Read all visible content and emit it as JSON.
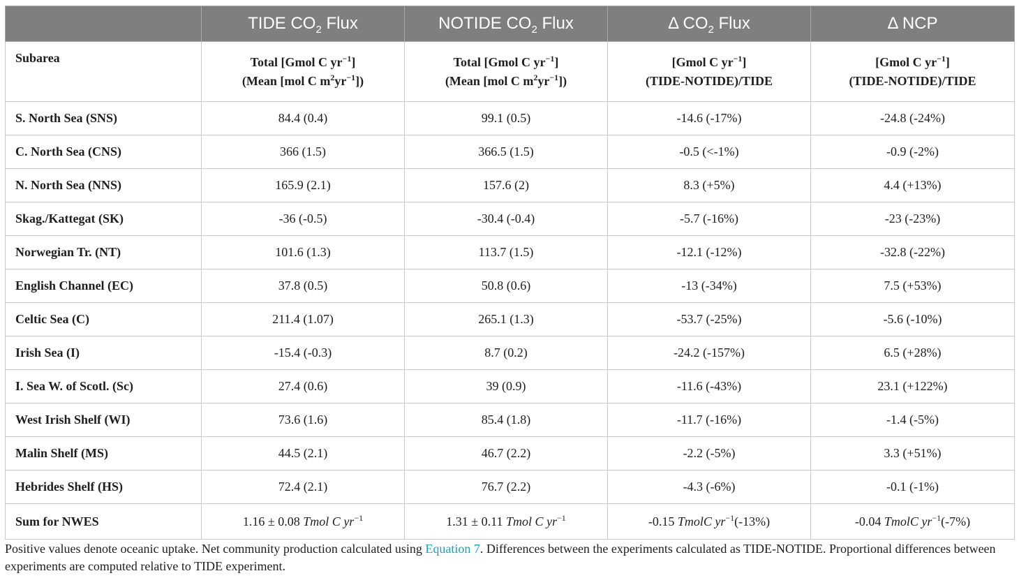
{
  "headers": {
    "h0": "",
    "h1_pre": "TIDE CO",
    "h1_sub": "2",
    "h1_post": " Flux",
    "h2_pre": "NOTIDE CO",
    "h2_sub": "2",
    "h2_post": " Flux",
    "h3_pre": "Δ CO",
    "h3_sub": "2",
    "h3_post": " Flux",
    "h4": "Δ NCP"
  },
  "units_row": {
    "subarea": "Subarea",
    "c1_l1_pre": "Total [Gmol C yr",
    "c1_l1_sup": "−1",
    "c1_l1_post": "]",
    "c1_l2_pre": "(Mean [mol C m",
    "c1_l2_sup1": "2",
    "c1_l2_mid": "yr",
    "c1_l2_sup2": "−1",
    "c1_l2_post": "])",
    "c2_l1_pre": "Total [Gmol C yr",
    "c2_l1_sup": "−1",
    "c2_l1_post": "]",
    "c2_l2_pre": "(Mean [mol C m",
    "c2_l2_sup1": "2",
    "c2_l2_mid": "yr",
    "c2_l2_sup2": "−1",
    "c2_l2_post": "])",
    "c3_l1_pre": "[Gmol C yr",
    "c3_l1_sup": "−1",
    "c3_l1_post": "]",
    "c3_l2": "(TIDE-NOTIDE)/TIDE",
    "c4_l1_pre": "[Gmol C yr",
    "c4_l1_sup": "−1",
    "c4_l1_post": "]",
    "c4_l2": "(TIDE-NOTIDE)/TIDE"
  },
  "rows": [
    {
      "subarea": "S. North Sea (SNS)",
      "tide": "84.4 (0.4)",
      "notide": "99.1 (0.5)",
      "dco2": "-14.6 (-17%)",
      "dncp": "-24.8 (-24%)"
    },
    {
      "subarea": "C. North Sea (CNS)",
      "tide": "366 (1.5)",
      "notide": "366.5 (1.5)",
      "dco2": "-0.5 (<-1%)",
      "dncp": "-0.9 (-2%)"
    },
    {
      "subarea": "N. North Sea (NNS)",
      "tide": "165.9 (2.1)",
      "notide": "157.6 (2)",
      "dco2": "8.3 (+5%)",
      "dncp": "4.4 (+13%)"
    },
    {
      "subarea": "Skag./Kattegat (SK)",
      "tide": "-36 (-0.5)",
      "notide": "-30.4 (-0.4)",
      "dco2": "-5.7 (-16%)",
      "dncp": "-23 (-23%)"
    },
    {
      "subarea": "Norwegian Tr. (NT)",
      "tide": "101.6 (1.3)",
      "notide": "113.7 (1.5)",
      "dco2": "-12.1 (-12%)",
      "dncp": "-32.8 (-22%)"
    },
    {
      "subarea": "English Channel (EC)",
      "tide": "37.8 (0.5)",
      "notide": "50.8 (0.6)",
      "dco2": "-13 (-34%)",
      "dncp": "7.5 (+53%)"
    },
    {
      "subarea": "Celtic Sea (C)",
      "tide": "211.4 (1.07)",
      "notide": "265.1 (1.3)",
      "dco2": "-53.7 (-25%)",
      "dncp": "-5.6 (-10%)"
    },
    {
      "subarea": "Irish Sea (I)",
      "tide": "-15.4 (-0.3)",
      "notide": "8.7 (0.2)",
      "dco2": "-24.2 (-157%)",
      "dncp": "6.5 (+28%)"
    },
    {
      "subarea": "I. Sea W. of Scotl. (Sc)",
      "tide": "27.4 (0.6)",
      "notide": "39 (0.9)",
      "dco2": "-11.6 (-43%)",
      "dncp": "23.1 (+122%)"
    },
    {
      "subarea": "West Irish Shelf (WI)",
      "tide": "73.6 (1.6)",
      "notide": "85.4 (1.8)",
      "dco2": "-11.7 (-16%)",
      "dncp": "-1.4 (-5%)"
    },
    {
      "subarea": "Malin Shelf (MS)",
      "tide": "44.5 (2.1)",
      "notide": "46.7 (2.2)",
      "dco2": "-2.2 (-5%)",
      "dncp": "3.3 (+51%)"
    },
    {
      "subarea": "Hebrides Shelf (HS)",
      "tide": "72.4 (2.1)",
      "notide": "76.7 (2.2)",
      "dco2": "-4.3 (-6%)",
      "dncp": "-0.1 (-1%)"
    }
  ],
  "sum_row": {
    "subarea": "Sum for NWES",
    "tide_val": "1.16 ± 0.08 ",
    "tide_unit": "Tmol  C  yr",
    "tide_sup": "−1",
    "notide_val": "1.31 ± 0.11 ",
    "notide_unit": "Tmol  C  yr",
    "notide_sup": "−1",
    "dco2_val": "-0.15 ",
    "dco2_unit": "TmolC  yr",
    "dco2_sup": "−1",
    "dco2_post": "(-13%)",
    "dncp_val": "-0.04 ",
    "dncp_unit": "TmolC  yr",
    "dncp_sup": "−1",
    "dncp_post": "(-7%)"
  },
  "footnote": {
    "part1": "Positive values denote oceanic uptake. Net community production calculated using ",
    "link": "Equation 7",
    "part2": ". Differences between the experiments calculated as TIDE-NOTIDE. Proportional differences between experiments are computed relative to TIDE experiment."
  },
  "colors": {
    "header_bg": "#7f7f7f",
    "header_text": "#ffffff",
    "link": "#17a2b8"
  }
}
